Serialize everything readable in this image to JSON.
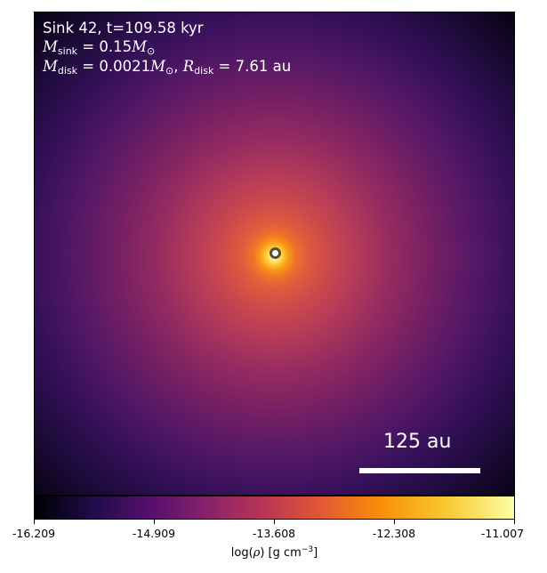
{
  "figure": {
    "info": {
      "sink_label": "Sink 42, t=109.58 kyr",
      "m_sink_symbol": "M",
      "m_sink_sub": "sink",
      "m_sink_value": " = 0.15",
      "m_sink_unit": "M",
      "m_sink_unit_sub": "⊙",
      "m_disk_symbol": "M",
      "m_disk_sub": "disk",
      "m_disk_value": " = 0.0021",
      "m_disk_unit": "M",
      "m_disk_unit_sub": "⊙",
      "separator": ", ",
      "r_disk_symbol": "R",
      "r_disk_sub": "disk",
      "r_disk_value": " = 7.61 au"
    },
    "scale_bar": {
      "label": "125 au"
    },
    "colorbar": {
      "colormap": "inferno",
      "min": -16.209,
      "max": -11.007,
      "ticks": [
        "-16.209",
        "-14.909",
        "-13.608",
        "-12.308",
        "-11.007"
      ],
      "label_prefix": "log(",
      "label_rho": "ρ",
      "label_mid": ") [g cm",
      "label_exp": "−3",
      "label_suffix": "]"
    },
    "colors": {
      "text_on_image": "#ffffff",
      "sink_marker_fill": "#ffffff",
      "sink_marker_edge": "#5a4a38",
      "scale_bar": "#ffffff"
    }
  }
}
